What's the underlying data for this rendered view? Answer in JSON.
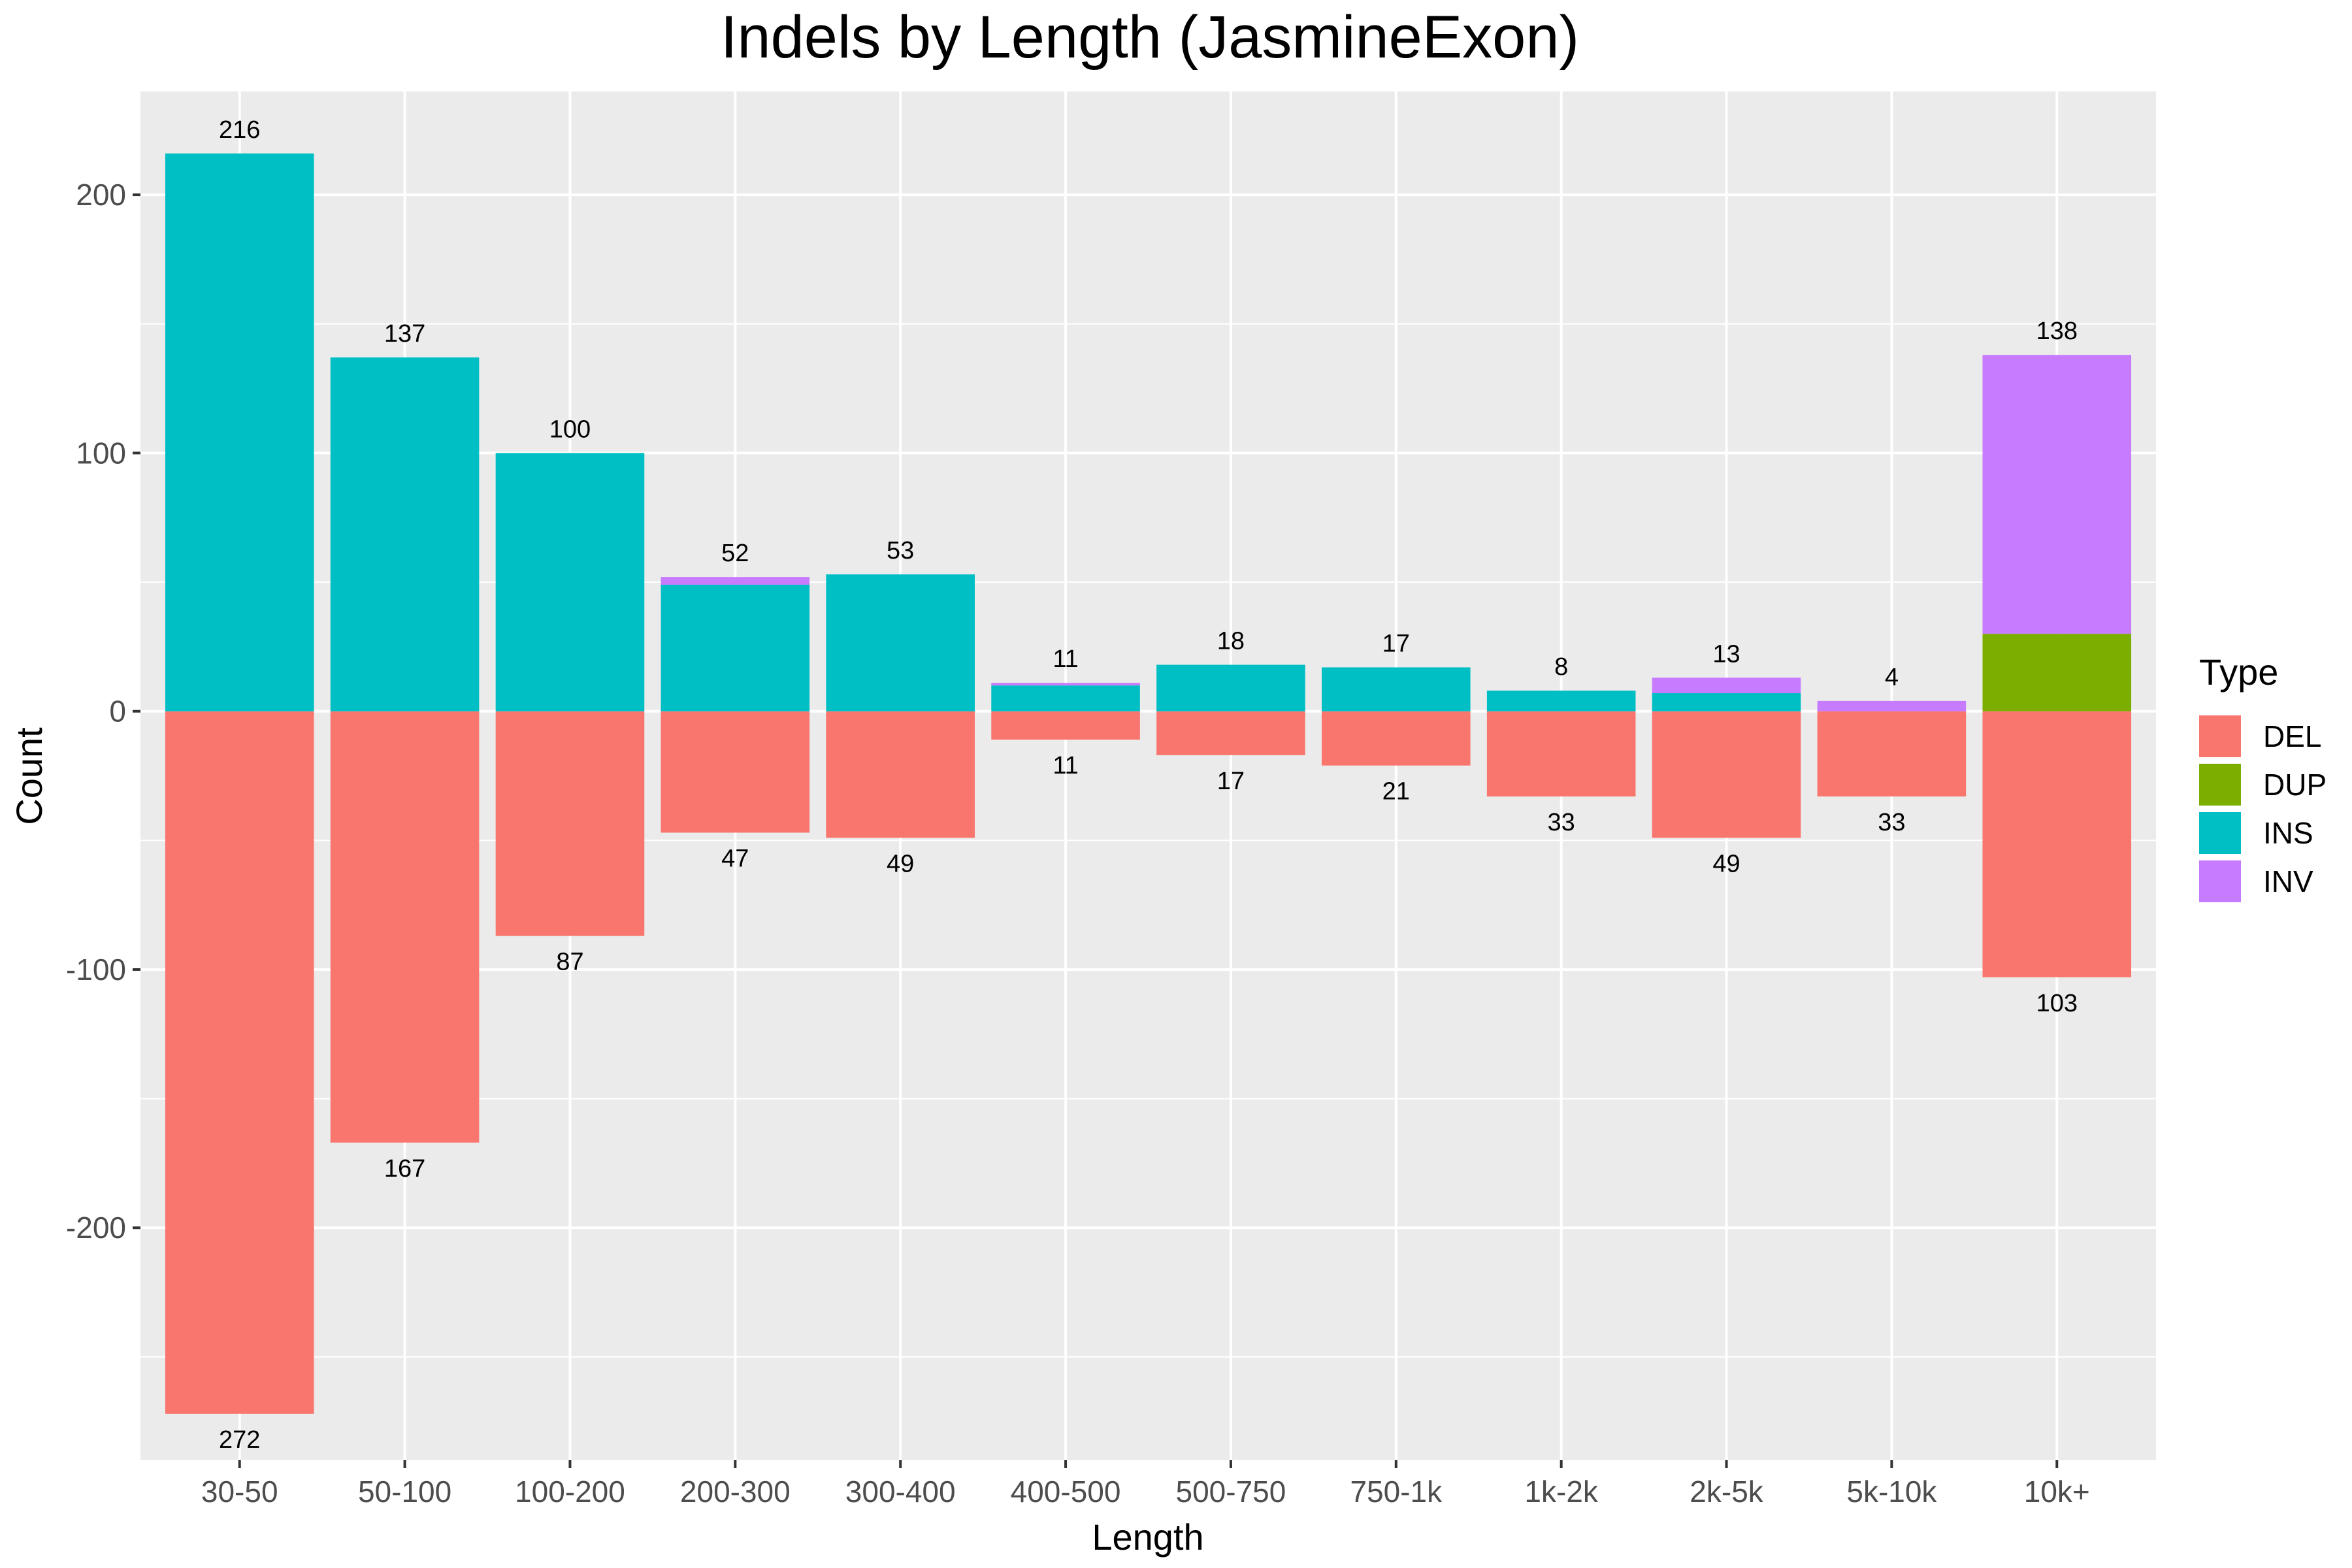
{
  "chart_data": {
    "type": "bar",
    "title": "Indels by Length (JasmineExon)",
    "xlabel": "Length",
    "ylabel": "Count",
    "ylim": [
      -290,
      240
    ],
    "yticks": [
      -200,
      -100,
      0,
      100,
      200
    ],
    "grid": true,
    "legend": {
      "title": "Type",
      "position": "right"
    },
    "categories": [
      "30-50",
      "50-100",
      "100-200",
      "200-300",
      "300-400",
      "400-500",
      "500-750",
      "750-1k",
      "1k-2k",
      "2k-5k",
      "5k-10k",
      "10k+"
    ],
    "series": [
      {
        "name": "DEL",
        "color": "#F8766D",
        "values": [
          -272,
          -167,
          -87,
          -47,
          -49,
          -11,
          -17,
          -21,
          -33,
          -49,
          -33,
          -103
        ]
      },
      {
        "name": "DUP",
        "color": "#7CAE00",
        "values": [
          0,
          0,
          0,
          0,
          0,
          0,
          0,
          0,
          0,
          0,
          0,
          30
        ]
      },
      {
        "name": "INS",
        "color": "#00BFC4",
        "values": [
          216,
          137,
          100,
          49,
          53,
          10,
          18,
          17,
          8,
          7,
          0,
          0
        ]
      },
      {
        "name": "INV",
        "color": "#C77CFF",
        "values": [
          0,
          0,
          0,
          3,
          0,
          1,
          0,
          0,
          0,
          6,
          4,
          108
        ]
      }
    ],
    "top_labels": [
      "216",
      "137",
      "100",
      "52",
      "53",
      "11",
      "18",
      "17",
      "8",
      "13",
      "4",
      "138"
    ],
    "bottom_labels": [
      "272",
      "167",
      "87",
      "47",
      "49",
      "11",
      "17",
      "21",
      "33",
      "49",
      "33",
      "103"
    ]
  }
}
